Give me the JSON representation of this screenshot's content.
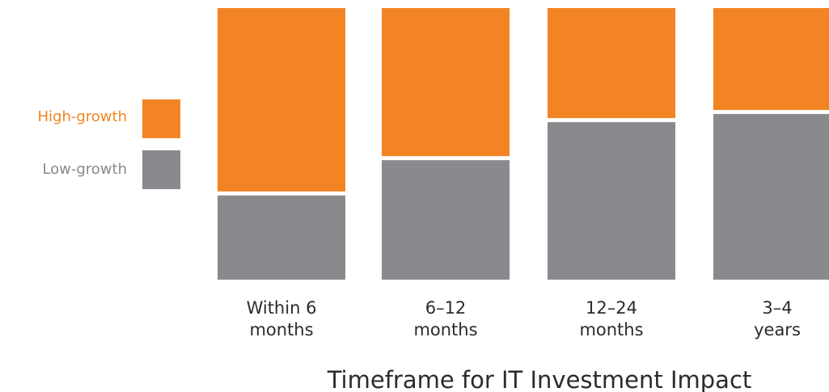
{
  "chart_data": {
    "type": "bar",
    "stacked": true,
    "normalized": true,
    "categories": [
      [
        "Within 6",
        "months"
      ],
      [
        "6–12",
        "months"
      ],
      [
        "12–24",
        "months"
      ],
      [
        "3–4",
        "years"
      ]
    ],
    "series": [
      {
        "name": "Low-growth",
        "color": "#888a8d",
        "values": [
          31,
          44,
          58,
          61
        ]
      },
      {
        "name": "High-growth",
        "color": "#f28423",
        "values": [
          69,
          56,
          42,
          39
        ]
      }
    ],
    "xlabel": "Timeframe for IT Investment Impact",
    "ylim": [
      0,
      100
    ],
    "legend": {
      "position": "left",
      "order": [
        "High-growth",
        "Low-growth"
      ]
    }
  }
}
